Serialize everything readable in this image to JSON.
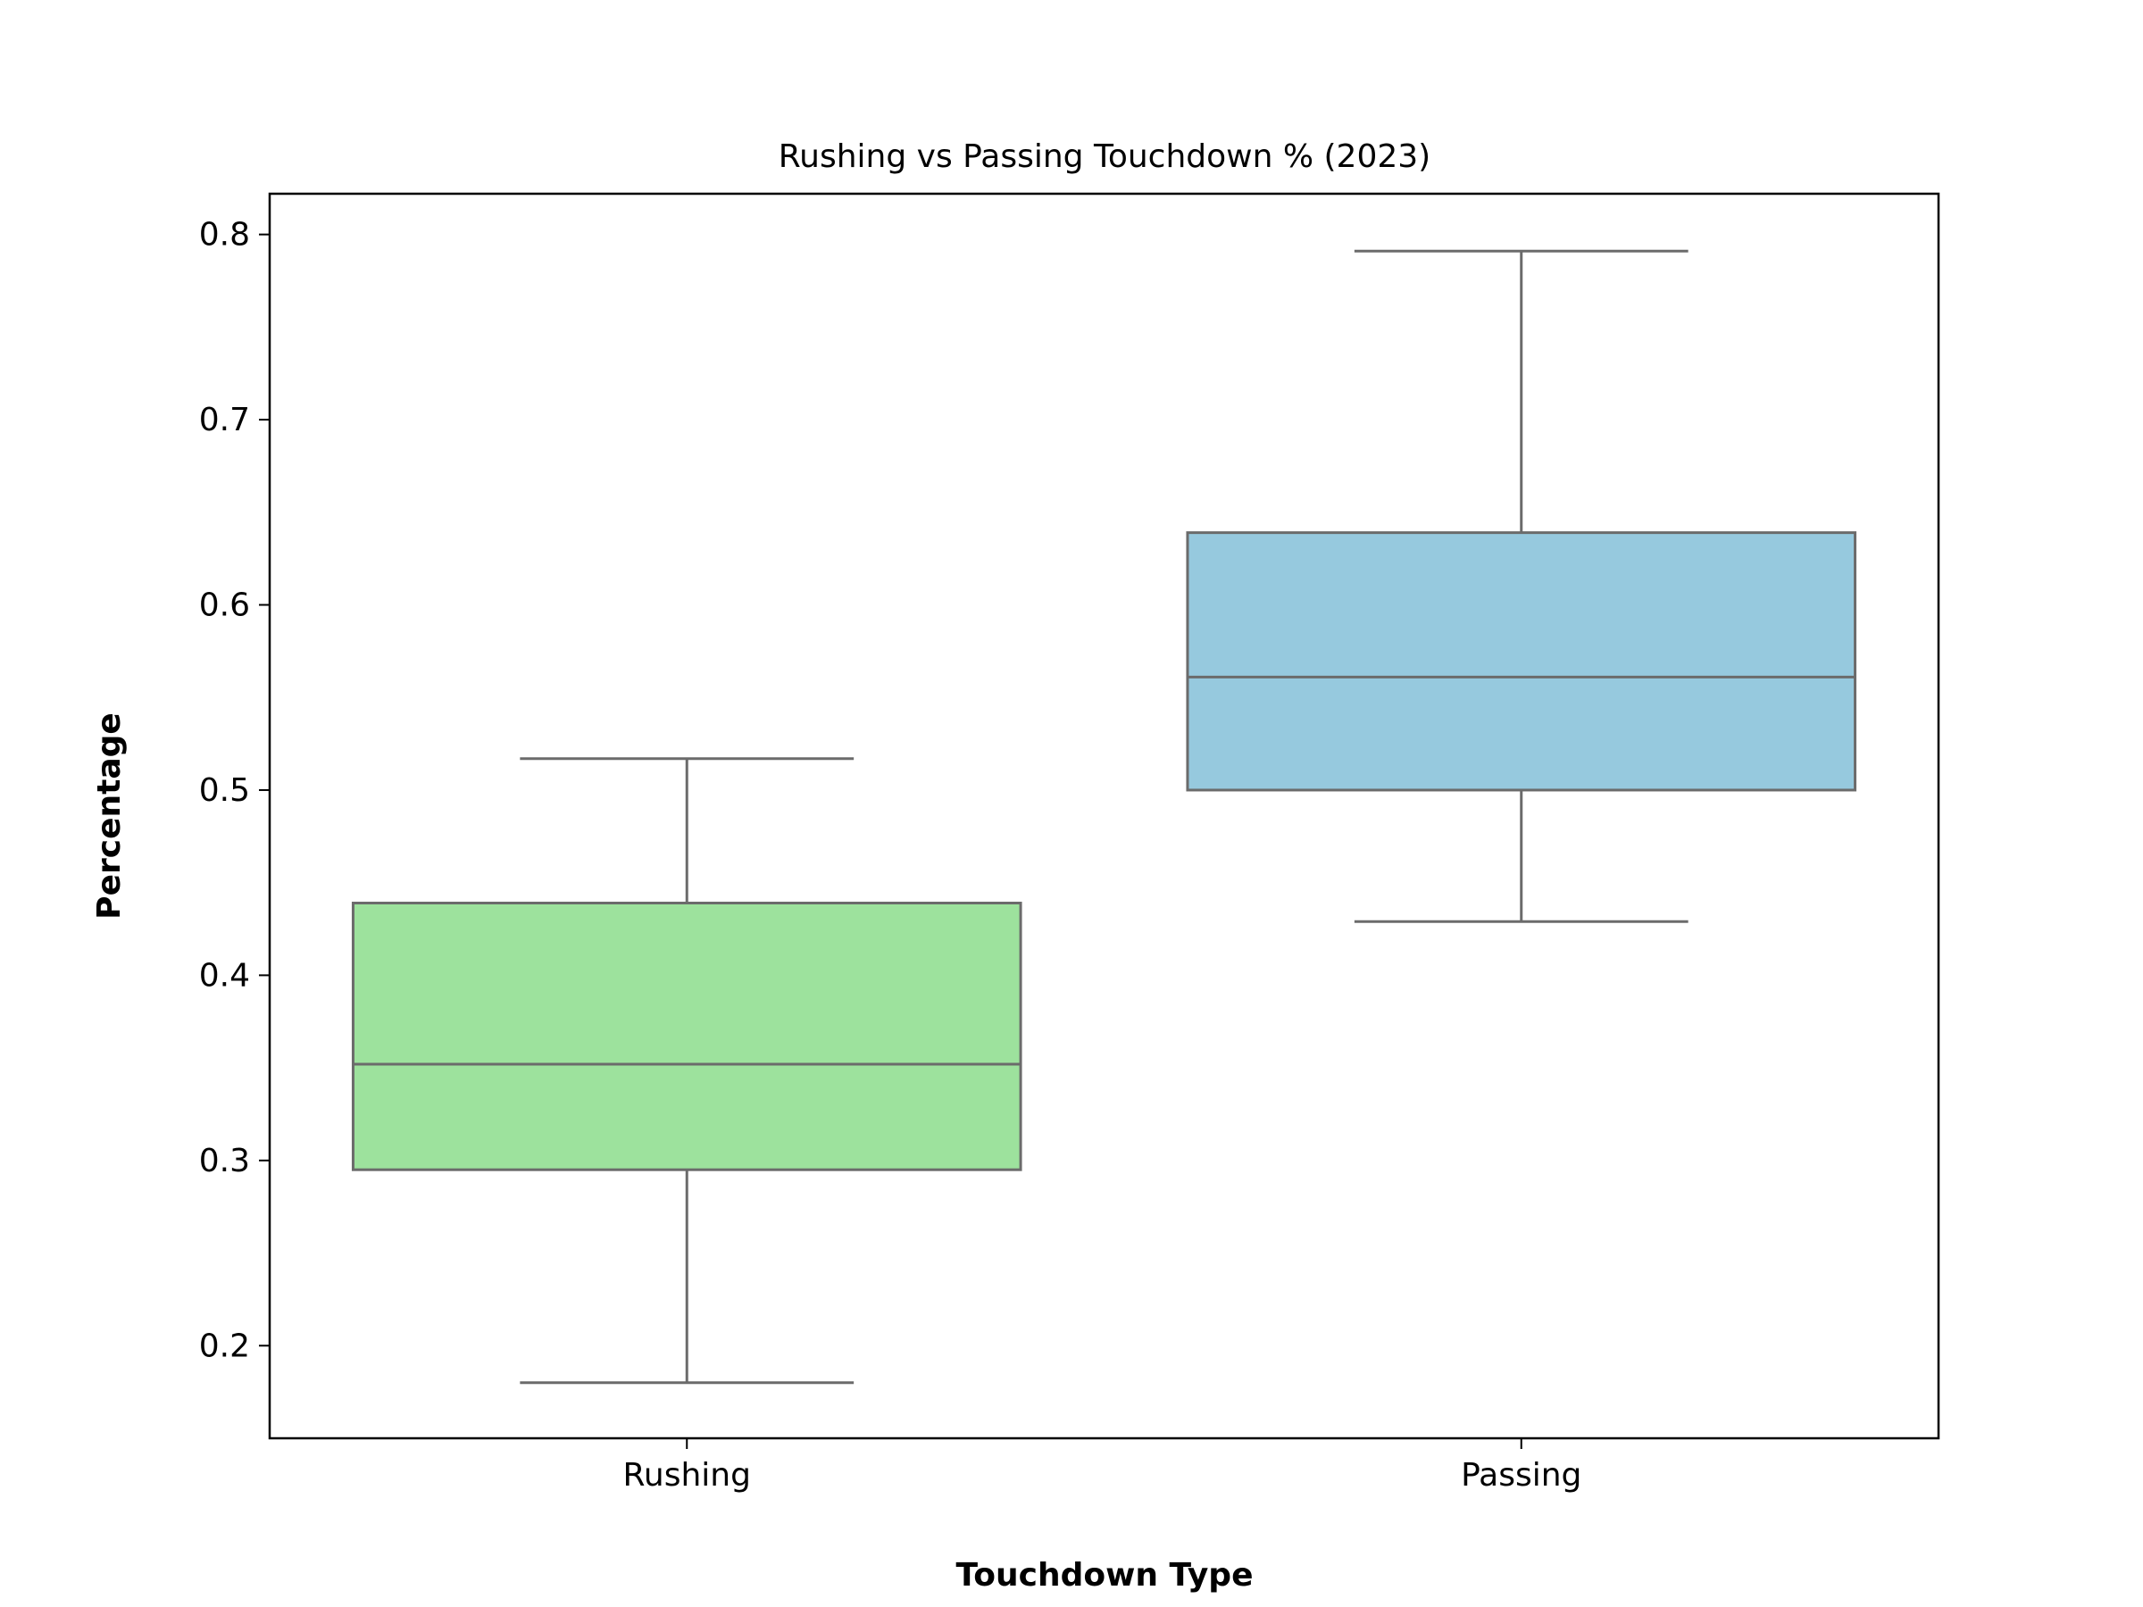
{
  "chart_data": {
    "type": "box",
    "title": "Rushing vs Passing Touchdown % (2023)",
    "xlabel": "Touchdown Type",
    "ylabel": "Percentage",
    "categories": [
      "Rushing",
      "Passing"
    ],
    "boxes": [
      {
        "category": "Rushing",
        "whisker_low": 0.18,
        "q1": 0.295,
        "median": 0.352,
        "q3": 0.439,
        "whisker_high": 0.517,
        "color": "#9de29d"
      },
      {
        "category": "Passing",
        "whisker_low": 0.429,
        "q1": 0.5,
        "median": 0.561,
        "q3": 0.639,
        "whisker_high": 0.791,
        "color": "#96c9de"
      }
    ],
    "ylim": [
      0.15,
      0.822
    ],
    "yticks": [
      0.2,
      0.3,
      0.4,
      0.5,
      0.6,
      0.7,
      0.8
    ],
    "ytick_labels": [
      "0.2",
      "0.3",
      "0.4",
      "0.5",
      "0.6",
      "0.7",
      "0.8"
    ],
    "grid": false,
    "legend": "none",
    "line_color": "#6b6b6b"
  }
}
